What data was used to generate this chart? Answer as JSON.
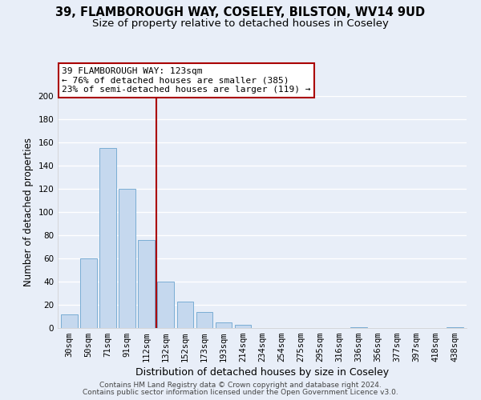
{
  "title1": "39, FLAMBOROUGH WAY, COSELEY, BILSTON, WV14 9UD",
  "title2": "Size of property relative to detached houses in Coseley",
  "xlabel": "Distribution of detached houses by size in Coseley",
  "ylabel": "Number of detached properties",
  "bar_labels": [
    "30sqm",
    "50sqm",
    "71sqm",
    "91sqm",
    "112sqm",
    "132sqm",
    "152sqm",
    "173sqm",
    "193sqm",
    "214sqm",
    "234sqm",
    "254sqm",
    "275sqm",
    "295sqm",
    "316sqm",
    "336sqm",
    "356sqm",
    "377sqm",
    "397sqm",
    "418sqm",
    "438sqm"
  ],
  "bar_values": [
    12,
    60,
    155,
    120,
    76,
    40,
    23,
    14,
    5,
    3,
    0,
    0,
    0,
    0,
    0,
    1,
    0,
    0,
    0,
    0,
    1
  ],
  "bar_color": "#c5d8ee",
  "bar_edge_color": "#7aadd4",
  "property_line_x": 4.5,
  "property_line_color": "#aa0000",
  "ylim": [
    0,
    200
  ],
  "yticks": [
    0,
    20,
    40,
    60,
    80,
    100,
    120,
    140,
    160,
    180,
    200
  ],
  "annotation_title": "39 FLAMBOROUGH WAY: 123sqm",
  "annotation_line1": "← 76% of detached houses are smaller (385)",
  "annotation_line2": "23% of semi-detached houses are larger (119) →",
  "annotation_box_color": "#ffffff",
  "annotation_box_edge": "#aa0000",
  "footer1": "Contains HM Land Registry data © Crown copyright and database right 2024.",
  "footer2": "Contains public sector information licensed under the Open Government Licence v3.0.",
  "background_color": "#e8eef8",
  "grid_color": "#ffffff",
  "title1_fontsize": 10.5,
  "title2_fontsize": 9.5,
  "xlabel_fontsize": 9,
  "ylabel_fontsize": 8.5,
  "tick_fontsize": 7.5,
  "annotation_fontsize": 8,
  "footer_fontsize": 6.5
}
